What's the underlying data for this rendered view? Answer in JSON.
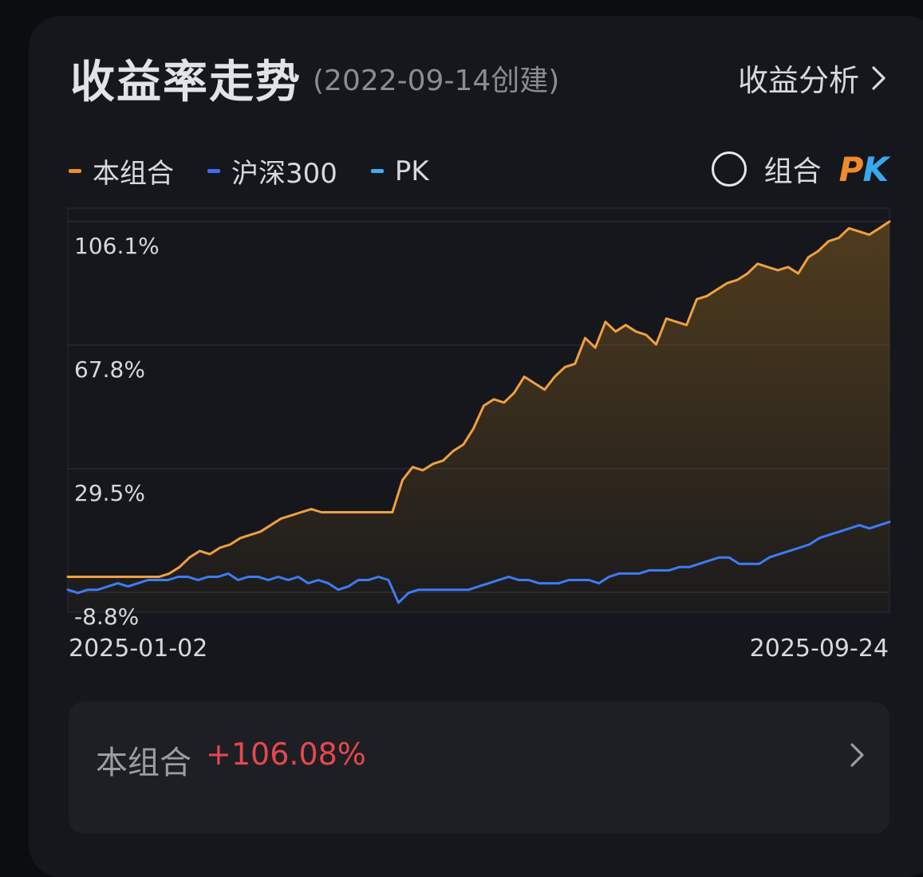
{
  "header": {
    "title": "收益率走势",
    "subtitle": "(2022-09-14创建)",
    "analysis_link": "收益分析"
  },
  "legend": [
    {
      "name": "本组合",
      "color": "#f0a040"
    },
    {
      "name": "沪深300",
      "color": "#3d7cf5"
    },
    {
      "name": "PK",
      "color": "#46aaf0"
    }
  ],
  "pk_toggle": {
    "label": "组合",
    "logo_p": "P",
    "logo_k": "K",
    "checked": false
  },
  "summary": {
    "label": "本组合",
    "value": "+106.08%"
  },
  "chart_data": {
    "type": "line",
    "x_start": "2025-01-02",
    "x_end": "2025-09-24",
    "y_ticks": [
      106.1,
      67.8,
      29.5,
      -8.8
    ],
    "y_tick_labels": [
      "106.1%",
      "67.8%",
      "29.5%",
      "-8.8%"
    ],
    "ylim": [
      -15,
      110
    ],
    "grid": true,
    "series": [
      {
        "name": "本组合",
        "color": "#f0a040",
        "fill": true,
        "values": [
          -4,
          -4,
          -4,
          -4,
          -4,
          -4,
          -4,
          -4,
          -4,
          -4,
          -3,
          -1,
          2,
          4,
          3,
          5,
          6,
          8,
          9,
          10,
          12,
          14,
          15,
          16,
          17,
          16,
          16,
          16,
          16,
          16,
          16,
          16,
          16,
          26,
          30,
          29,
          31,
          32,
          35,
          37,
          42,
          49,
          51,
          50,
          53,
          58,
          56,
          54,
          58,
          61,
          62,
          70,
          67,
          75,
          72,
          74,
          72,
          71,
          68,
          76,
          75,
          74,
          82,
          83,
          85,
          87,
          88,
          90,
          93,
          92,
          91,
          92,
          90,
          95,
          97,
          100,
          101,
          104,
          103,
          102,
          104,
          106.08
        ]
      },
      {
        "name": "沪深300",
        "color": "#3d7cf5",
        "fill": false,
        "values": [
          -8,
          -9,
          -8,
          -8,
          -7,
          -6,
          -7,
          -6,
          -5,
          -5,
          -5,
          -4,
          -4,
          -5,
          -4,
          -4,
          -3,
          -5,
          -4,
          -4,
          -5,
          -4,
          -5,
          -4,
          -6,
          -5,
          -6,
          -8,
          -7,
          -5,
          -5,
          -4,
          -5,
          -12,
          -9,
          -8,
          -8,
          -8,
          -8,
          -8,
          -8,
          -7,
          -6,
          -5,
          -4,
          -5,
          -5,
          -6,
          -6,
          -6,
          -5,
          -5,
          -5,
          -6,
          -4,
          -3,
          -3,
          -3,
          -2,
          -2,
          -2,
          -1,
          -1,
          0,
          1,
          2,
          2,
          0,
          0,
          0,
          2,
          3,
          4,
          5,
          6,
          8,
          9,
          10,
          11,
          12,
          11,
          12,
          13
        ]
      }
    ]
  }
}
